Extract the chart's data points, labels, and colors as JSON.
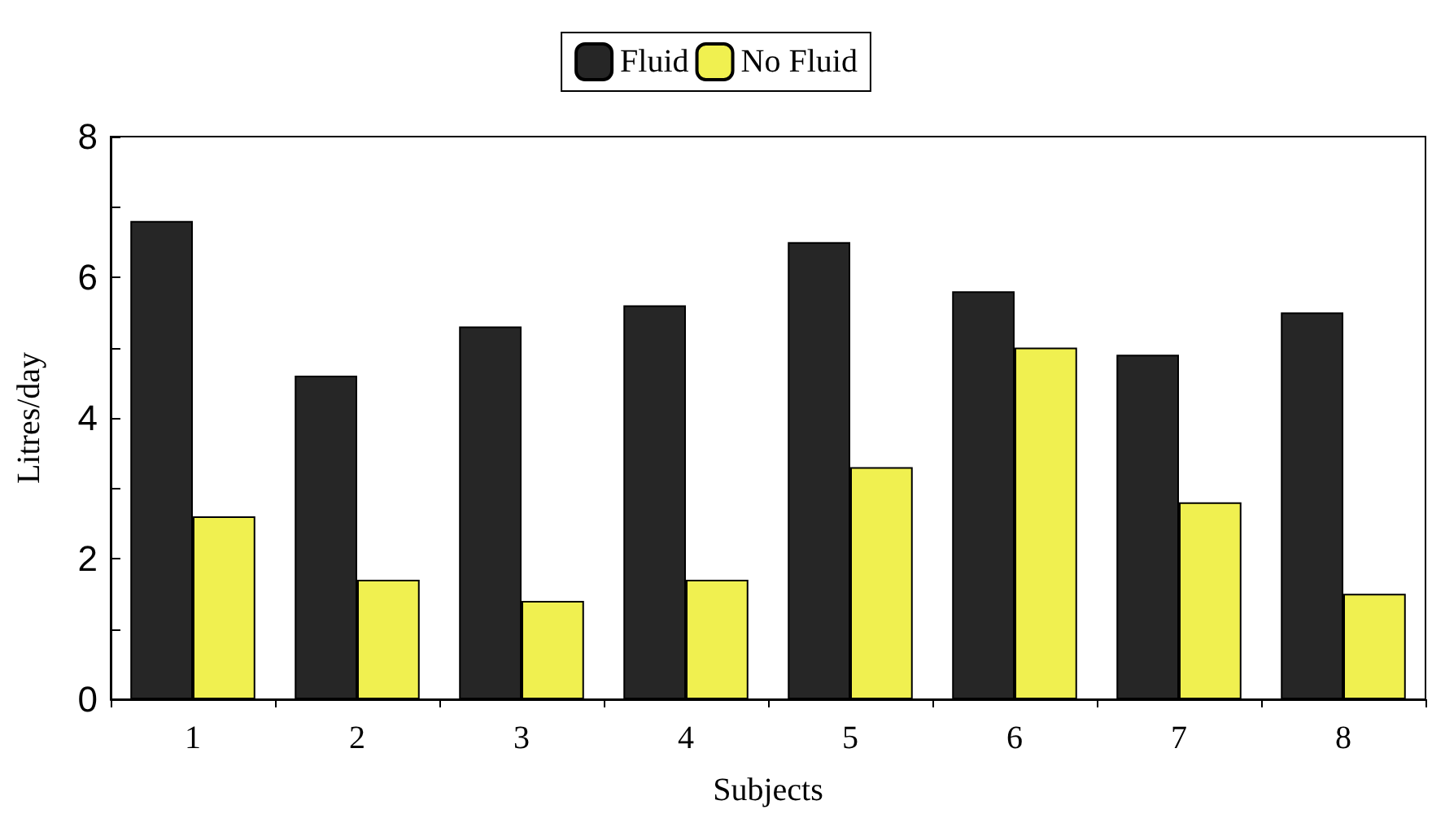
{
  "chart_data": {
    "type": "bar",
    "xlabel": "Subjects",
    "ylabel": "Litres/day",
    "categories": [
      "1",
      "2",
      "3",
      "4",
      "5",
      "6",
      "7",
      "8"
    ],
    "series": [
      {
        "name": "Fluid",
        "color": "#262626",
        "values": [
          6.8,
          4.6,
          5.3,
          5.6,
          6.5,
          5.8,
          4.9,
          5.5
        ]
      },
      {
        "name": "No Fluid",
        "color": "#f0f050",
        "values": [
          2.6,
          1.7,
          1.4,
          1.7,
          3.3,
          5.0,
          2.8,
          1.5
        ]
      }
    ],
    "ylim": [
      0,
      8
    ],
    "yticks": [
      0,
      {
        "value": 1,
        "label": null
      },
      2,
      {
        "value": 3,
        "label": null
      },
      4,
      {
        "value": 5,
        "label": null
      },
      6,
      {
        "value": 7,
        "label": null
      },
      8
    ],
    "grid": false,
    "legend": "top"
  }
}
